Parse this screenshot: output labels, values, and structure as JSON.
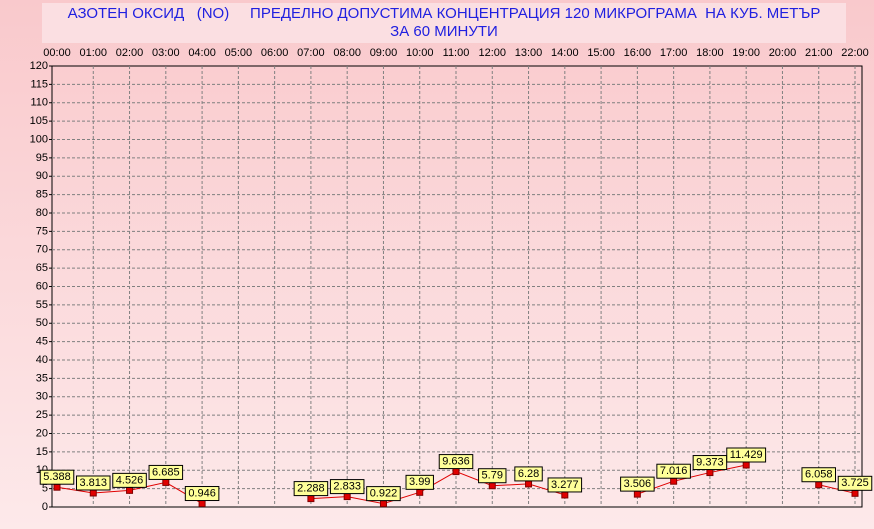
{
  "chart_data": {
    "type": "line",
    "title": [
      "АЗОТЕН ОКСИД   (NO)     ПРЕДЕЛНО ДОПУСТИМА КОНЦЕНТРАЦИЯ 120 МИКРОГРАМА  НА КУБ. МЕТЪР",
      "ЗА 60 МИНУТИ"
    ],
    "categories": [
      "00:00",
      "01:00",
      "02:00",
      "03:00",
      "04:00",
      "05:00",
      "06:00",
      "07:00",
      "08:00",
      "09:00",
      "10:00",
      "11:00",
      "12:00",
      "13:00",
      "14:00",
      "15:00",
      "16:00",
      "17:00",
      "18:00",
      "19:00",
      "20:00",
      "21:00",
      "22:00"
    ],
    "series": [
      {
        "color": "#e00000",
        "values": [
          5.388,
          3.813,
          4.526,
          6.685,
          0.946,
          null,
          null,
          2.288,
          2.833,
          0.922,
          3.99,
          9.636,
          5.79,
          6.28,
          3.277,
          null,
          3.506,
          7.016,
          9.373,
          11.429,
          null,
          6.058,
          3.725
        ]
      }
    ],
    "ylim": [
      0,
      120
    ],
    "yticks": [
      0,
      5,
      10,
      15,
      20,
      25,
      30,
      35,
      40,
      45,
      50,
      55,
      60,
      65,
      70,
      75,
      80,
      85,
      90,
      95,
      100,
      105,
      110,
      115,
      120
    ],
    "grid": true
  }
}
